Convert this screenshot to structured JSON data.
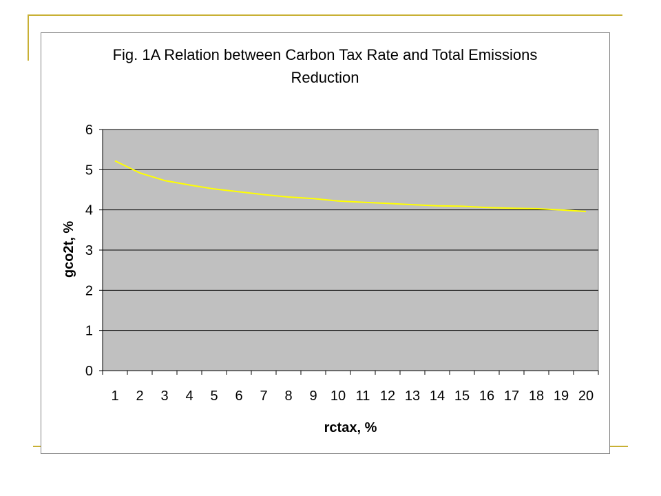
{
  "slide": {
    "accent_color": "#c8b034"
  },
  "chart_data": {
    "type": "line",
    "title_lines": [
      "Fig. 1A Relation between Carbon Tax Rate and Total Emissions",
      "Reduction"
    ],
    "xlabel": "rctax, %",
    "ylabel": "gco2t, %",
    "categories": [
      "1",
      "2",
      "3",
      "4",
      "5",
      "6",
      "7",
      "8",
      "9",
      "10",
      "11",
      "12",
      "13",
      "14",
      "15",
      "16",
      "17",
      "18",
      "19",
      "20"
    ],
    "y_ticks": [
      "0",
      "1",
      "2",
      "3",
      "4",
      "5",
      "6"
    ],
    "ylim": [
      0,
      6
    ],
    "grid": true,
    "legend": "none",
    "plot_background": "#c0c0c0",
    "line_color": "#ffff00",
    "series": [
      {
        "values": [
          5.22,
          4.92,
          4.73,
          4.62,
          4.52,
          4.45,
          4.38,
          4.32,
          4.28,
          4.22,
          4.19,
          4.16,
          4.13,
          4.1,
          4.09,
          4.06,
          4.04,
          4.03,
          4.0,
          3.96
        ]
      }
    ]
  }
}
